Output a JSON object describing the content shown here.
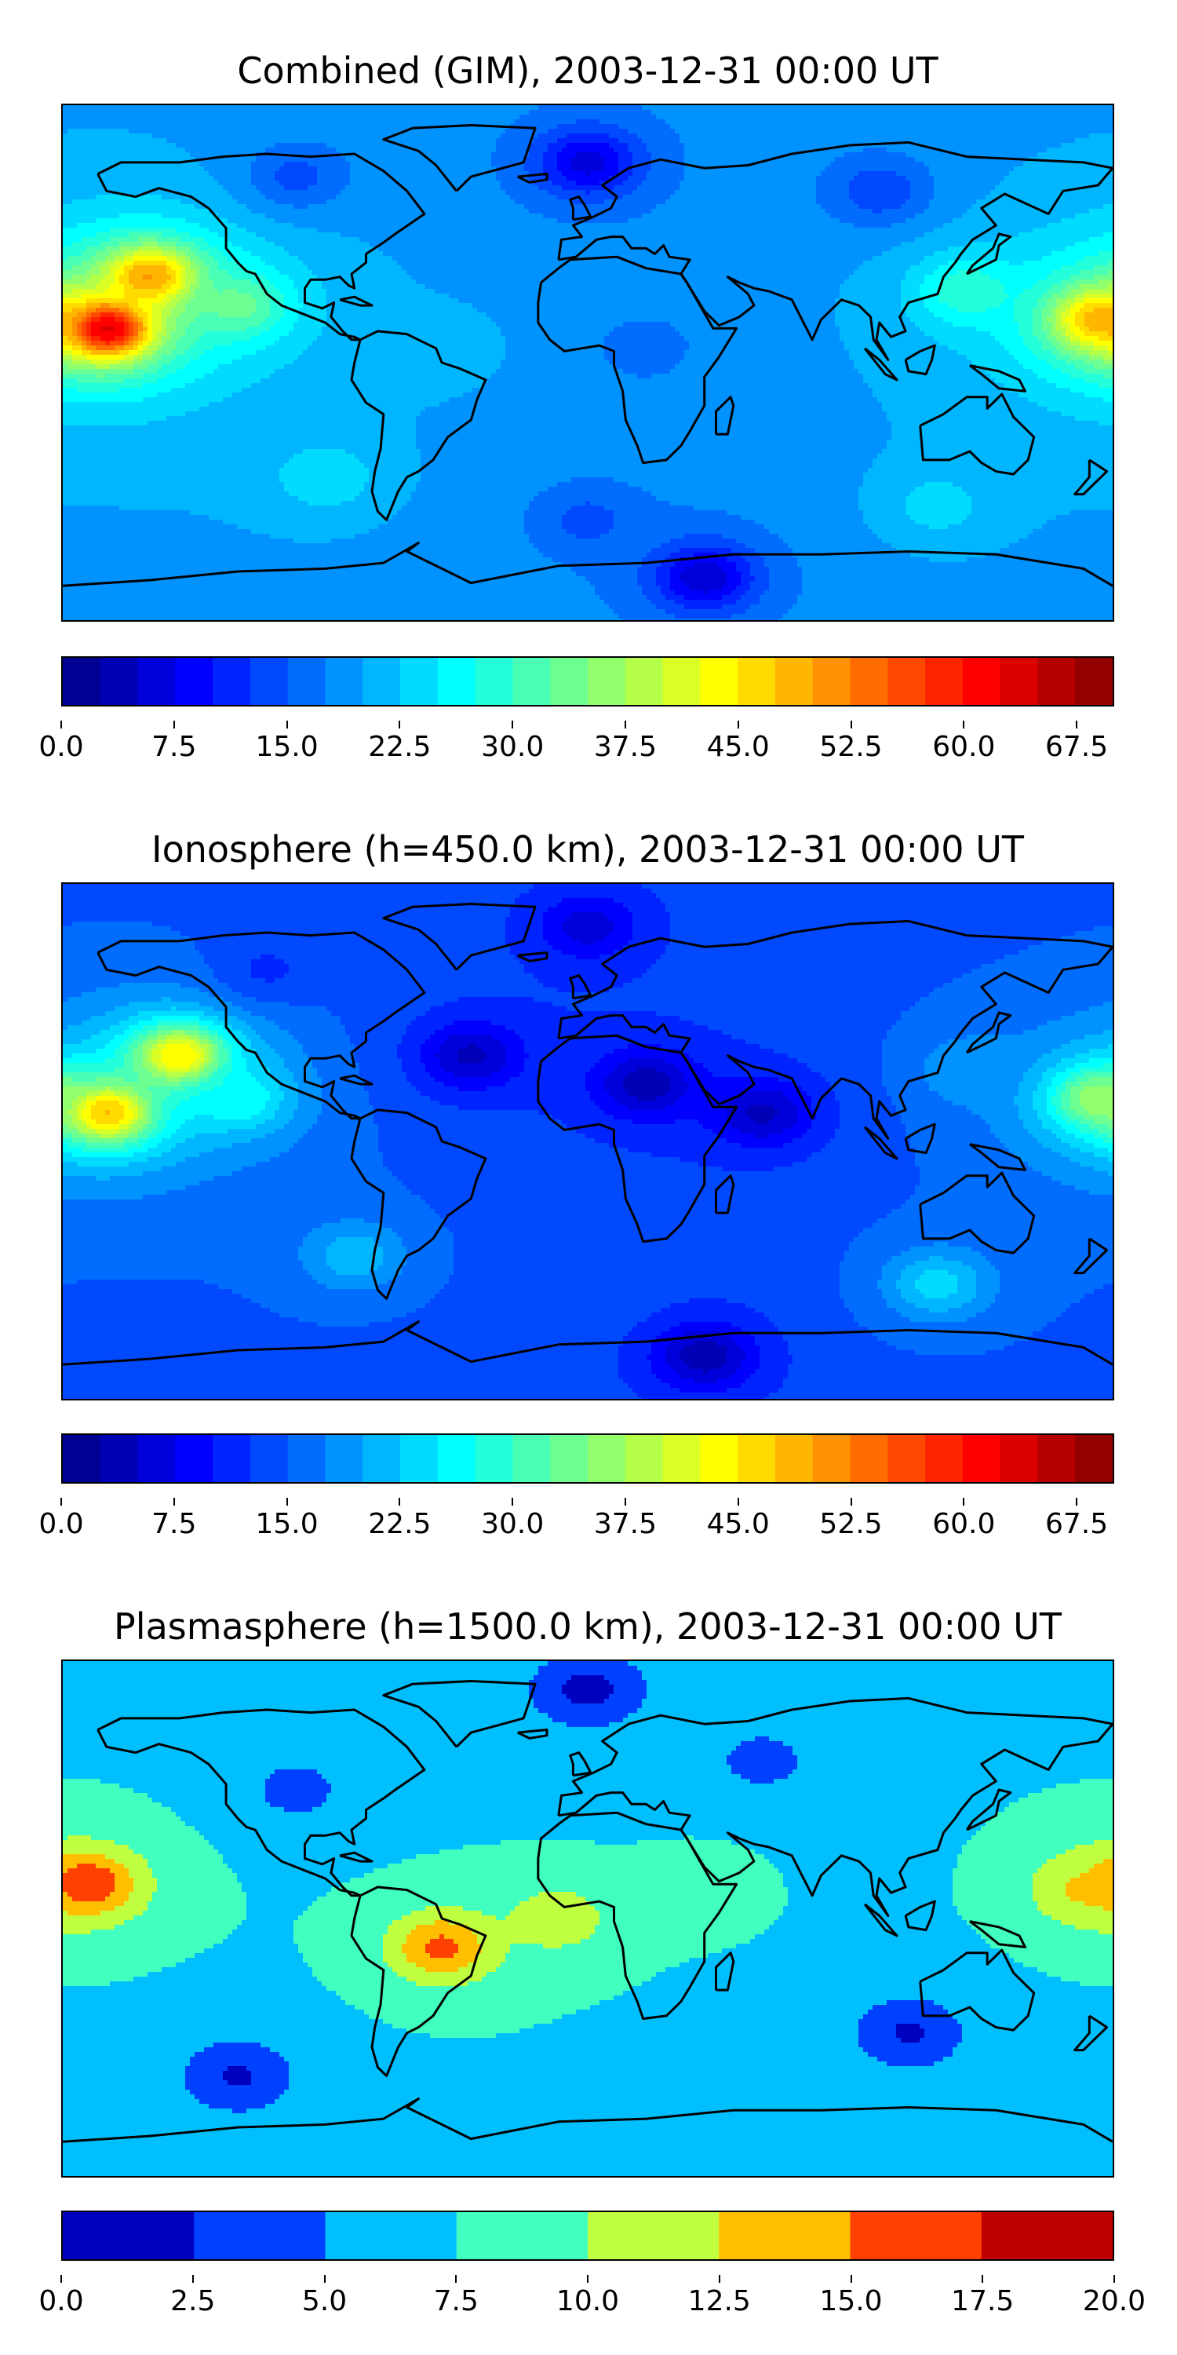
{
  "chart_data": [
    {
      "type": "heatmap",
      "title": "Combined (GIM), 2003-12-31 00:00 UT",
      "xlabel": "",
      "ylabel": "",
      "colorbar": {
        "min": 0.0,
        "max": 70.0,
        "levels": 28,
        "ticks": [
          "0.0",
          "7.5",
          "15.0",
          "22.5",
          "30.0",
          "37.5",
          "45.0",
          "52.5",
          "60.0",
          "67.5"
        ],
        "tick_values": [
          0.0,
          7.5,
          15.0,
          22.5,
          30.0,
          37.5,
          45.0,
          52.5,
          60.0,
          67.5
        ]
      },
      "features": [
        {
          "lon": -165,
          "lat": 12,
          "value": 66
        },
        {
          "lon": -150,
          "lat": 30,
          "value": 52
        },
        {
          "lon": -120,
          "lat": 20,
          "value": 34
        },
        {
          "lon": 175,
          "lat": 15,
          "value": 50
        },
        {
          "lon": 130,
          "lat": 25,
          "value": 30
        },
        {
          "lon": -50,
          "lat": 5,
          "value": 22
        },
        {
          "lon": 20,
          "lat": 5,
          "value": 16
        },
        {
          "lon": 60,
          "lat": -10,
          "value": 20
        },
        {
          "lon": -90,
          "lat": -40,
          "value": 25
        },
        {
          "lon": 0,
          "lat": -55,
          "value": 14
        },
        {
          "lon": 40,
          "lat": -75,
          "value": 5
        },
        {
          "lon": 0,
          "lat": 70,
          "value": 6
        },
        {
          "lon": -100,
          "lat": 65,
          "value": 14
        },
        {
          "lon": 100,
          "lat": 60,
          "value": 13
        },
        {
          "lon": 120,
          "lat": -50,
          "value": 24
        }
      ],
      "base_value": 19
    },
    {
      "type": "heatmap",
      "title": "Ionosphere  (h=450.0 km), 2003-12-31 00:00 UT",
      "xlabel": "",
      "ylabel": "",
      "colorbar": {
        "min": 0.0,
        "max": 70.0,
        "levels": 28,
        "ticks": [
          "0.0",
          "7.5",
          "15.0",
          "22.5",
          "30.0",
          "37.5",
          "45.0",
          "52.5",
          "60.0",
          "67.5"
        ],
        "tick_values": [
          0.0,
          7.5,
          15.0,
          22.5,
          30.0,
          37.5,
          45.0,
          52.5,
          60.0,
          67.5
        ]
      },
      "features": [
        {
          "lon": -165,
          "lat": 10,
          "value": 50
        },
        {
          "lon": -140,
          "lat": 30,
          "value": 47
        },
        {
          "lon": -120,
          "lat": 15,
          "value": 28
        },
        {
          "lon": 175,
          "lat": 15,
          "value": 38
        },
        {
          "lon": 130,
          "lat": 25,
          "value": 20
        },
        {
          "lon": -40,
          "lat": 30,
          "value": 4
        },
        {
          "lon": 20,
          "lat": 20,
          "value": 3
        },
        {
          "lon": 60,
          "lat": 10,
          "value": 4
        },
        {
          "lon": -80,
          "lat": -40,
          "value": 22
        },
        {
          "lon": 0,
          "lat": -50,
          "value": 15
        },
        {
          "lon": 40,
          "lat": -75,
          "value": 3
        },
        {
          "lon": 0,
          "lat": 75,
          "value": 6
        },
        {
          "lon": -110,
          "lat": 60,
          "value": 12
        },
        {
          "lon": 120,
          "lat": -50,
          "value": 24
        }
      ],
      "base_value": 14
    },
    {
      "type": "heatmap",
      "title": "Plasmasphere (h=1500.0 km), 2003-12-31 00:00 UT",
      "xlabel": "",
      "ylabel": "",
      "colorbar": {
        "min": 0.0,
        "max": 20.0,
        "levels": 8,
        "ticks": [
          "0.0",
          "2.5",
          "5.0",
          "7.5",
          "10.0",
          "12.5",
          "15.0",
          "17.5",
          "20.0"
        ],
        "tick_values": [
          0.0,
          2.5,
          5.0,
          7.5,
          10.0,
          12.5,
          15.0,
          17.5,
          20.0
        ]
      },
      "features": [
        {
          "lon": -172,
          "lat": 12,
          "value": 18
        },
        {
          "lon": -50,
          "lat": -10,
          "value": 16
        },
        {
          "lon": -10,
          "lat": 0,
          "value": 12
        },
        {
          "lon": 40,
          "lat": 10,
          "value": 10
        },
        {
          "lon": 170,
          "lat": 10,
          "value": 13
        },
        {
          "lon": 110,
          "lat": -40,
          "value": 2
        },
        {
          "lon": -120,
          "lat": -55,
          "value": 2
        },
        {
          "lon": 80,
          "lat": -65,
          "value": 6
        },
        {
          "lon": 0,
          "lat": 80,
          "value": 1.5
        },
        {
          "lon": 60,
          "lat": 55,
          "value": 4
        },
        {
          "lon": -100,
          "lat": 45,
          "value": 4
        },
        {
          "lon": 90,
          "lat": 25,
          "value": 7
        }
      ],
      "base_value": 7
    }
  ]
}
